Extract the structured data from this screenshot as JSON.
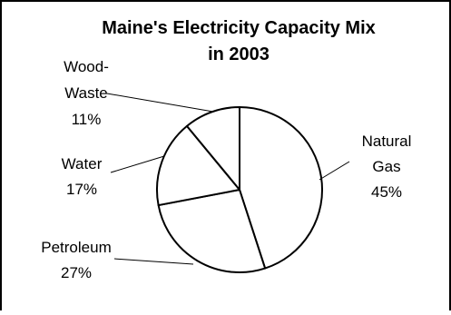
{
  "chart_data": {
    "type": "pie",
    "title_lines": [
      "Maine's Electricity Capacity Mix",
      "in 2003"
    ],
    "slices": [
      {
        "label_lines": [
          "Natural",
          "Gas",
          "45%"
        ],
        "value": 45
      },
      {
        "label_lines": [
          "Petroleum",
          "27%"
        ],
        "value": 27
      },
      {
        "label_lines": [
          "Water",
          "17%"
        ],
        "value": 17
      },
      {
        "label_lines": [
          "Wood-",
          "Waste",
          "11%"
        ],
        "value": 11
      }
    ],
    "start_angle_deg": 0,
    "direction": "clockwise",
    "fill_color": "#ffffff",
    "stroke_color": "#000000",
    "legend": "none"
  }
}
